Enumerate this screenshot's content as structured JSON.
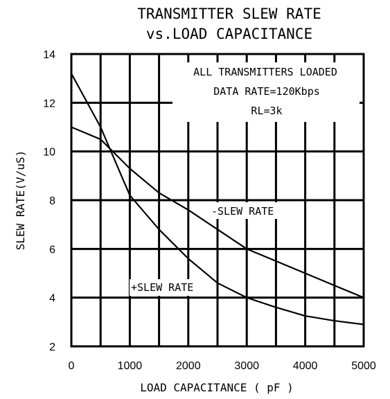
{
  "chart_data": {
    "type": "line",
    "title": "TRANSMITTER SLEW RATE",
    "subtitle": "vs.LOAD CAPACITANCE",
    "xlabel": "LOAD CAPACITANCE ( pF )",
    "ylabel": "SLEW RATE(V/uS)",
    "xlim": [
      0,
      5000
    ],
    "ylim": [
      2,
      14
    ],
    "x_ticks": [
      0,
      1000,
      2000,
      3000,
      4000,
      5000
    ],
    "y_ticks": [
      2,
      4,
      6,
      8,
      10,
      12,
      14
    ],
    "x_tick_labels": [
      "0",
      "1000",
      "2000",
      "3000",
      "4000",
      "5000"
    ],
    "y_tick_labels": [
      "2",
      "4",
      "6",
      "8",
      "10",
      "12",
      "14"
    ],
    "grid": true,
    "annotations": [
      "ALL TRANSMITTERS LOADED",
      "DATA RATE=120Kbps",
      "RL=3k"
    ],
    "series": [
      {
        "name": "-SLEW RATE",
        "x": [
          0,
          500,
          1000,
          1500,
          2000,
          2500,
          3000,
          3500,
          4000,
          4500,
          5000
        ],
        "y": [
          11.0,
          10.5,
          9.3,
          8.3,
          7.6,
          6.8,
          6.0,
          5.5,
          5.0,
          4.5,
          4.0
        ]
      },
      {
        "name": "+SLEW RATE",
        "x": [
          0,
          500,
          1000,
          1500,
          2000,
          2500,
          3000,
          3500,
          4000,
          4500,
          5000
        ],
        "y": [
          13.2,
          11.0,
          8.2,
          6.8,
          5.6,
          4.6,
          4.0,
          3.6,
          3.25,
          3.05,
          2.9
        ]
      }
    ]
  }
}
